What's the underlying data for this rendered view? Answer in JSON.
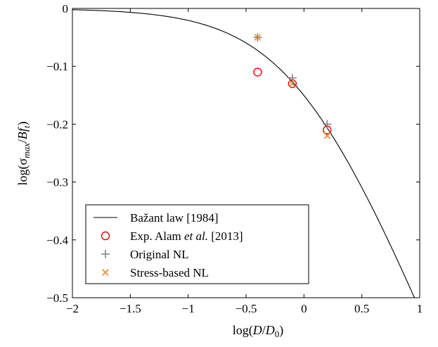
{
  "chart_data": {
    "type": "line",
    "xlabel": "log(D/D0)",
    "ylabel": "log(σmax/Bft)",
    "xlim": [
      -2,
      1
    ],
    "ylim": [
      -0.5,
      0
    ],
    "x_ticks": [
      -2,
      -1.5,
      -1,
      -0.5,
      0,
      0.5,
      1
    ],
    "x_tick_labels": [
      "−2",
      "−1.5",
      "−1",
      "−0.5",
      "0",
      "0.5",
      "1"
    ],
    "y_ticks": [
      0,
      -0.1,
      -0.2,
      -0.3,
      -0.4,
      -0.5
    ],
    "y_tick_labels": [
      "0",
      "−0.1",
      "−0.2",
      "−0.3",
      "−0.4",
      "−0.5"
    ],
    "grid": false,
    "legend_position": "bottom-left",
    "series": [
      {
        "name": "Bažant law [1984]",
        "kind": "line",
        "color": "#000000",
        "formula": "y = -0.5*log10(1 + 10^x)",
        "x_range": [
          -2,
          0.98
        ]
      },
      {
        "name": "Exp. Alam et al. [2013]",
        "kind": "scatter",
        "marker": "circle",
        "color": "#ff0000",
        "points": [
          [
            -0.4,
            -0.11
          ],
          [
            -0.1,
            -0.13
          ],
          [
            0.2,
            -0.21
          ]
        ]
      },
      {
        "name": "Original NL",
        "kind": "scatter",
        "marker": "plus",
        "color": "#808080",
        "points": [
          [
            -0.4,
            -0.05
          ],
          [
            -0.1,
            -0.12
          ],
          [
            0.2,
            -0.2
          ]
        ]
      },
      {
        "name": "Stress-based NL",
        "kind": "scatter",
        "marker": "cross",
        "color": "#f08020",
        "points": [
          [
            -0.4,
            -0.05
          ],
          [
            -0.1,
            -0.13
          ],
          [
            0.2,
            -0.22
          ]
        ]
      }
    ],
    "legend": {
      "entries": [
        {
          "prefix": "Bažant law [1984]",
          "italic": "",
          "suffix": ""
        },
        {
          "prefix": "Exp. Alam ",
          "italic": "et al.",
          "suffix": " [2013]"
        },
        {
          "prefix": "Original NL",
          "italic": "",
          "suffix": ""
        },
        {
          "prefix": "Stress-based NL",
          "italic": "",
          "suffix": ""
        }
      ]
    }
  }
}
